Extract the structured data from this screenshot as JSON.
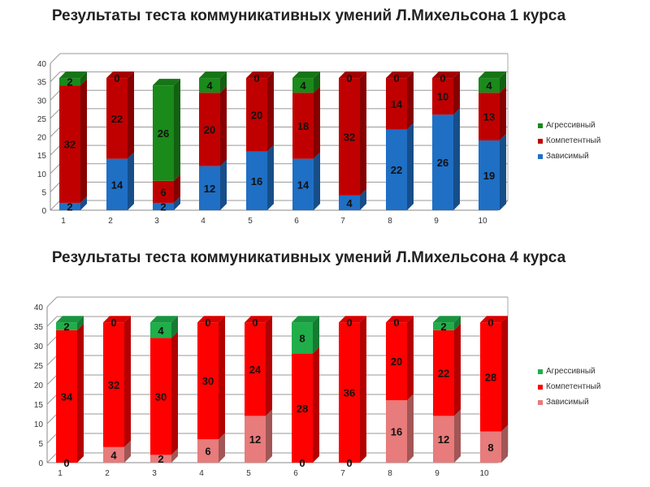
{
  "chart_data": [
    {
      "type": "bar",
      "stacked": true,
      "title": "Результаты теста коммуникативных умений Л.Михельсона 1 курса",
      "categories": [
        "1",
        "2",
        "3",
        "4",
        "5",
        "6",
        "7",
        "8",
        "9",
        "10"
      ],
      "ylim": [
        0,
        40
      ],
      "yticks": [
        "0",
        "5",
        "10",
        "15",
        "20",
        "25",
        "30",
        "35",
        "40"
      ],
      "legend_position": "right",
      "series": [
        {
          "name": "Зависимый",
          "color": "#1f6fc5",
          "values": [
            2,
            14,
            2,
            12,
            16,
            14,
            4,
            22,
            26,
            19
          ]
        },
        {
          "name": "Компетентный",
          "color": "#c00000",
          "values": [
            32,
            22,
            6,
            20,
            20,
            18,
            32,
            14,
            10,
            13
          ]
        },
        {
          "name": "Агрессивный",
          "color": "#1a8a1a",
          "values": [
            2,
            0,
            26,
            4,
            0,
            4,
            0,
            0,
            0,
            4
          ]
        }
      ]
    },
    {
      "type": "bar",
      "stacked": true,
      "title": "Результаты теста коммуникативных умений Л.Михельсона 4 курса",
      "categories": [
        "1",
        "2",
        "3",
        "4",
        "5",
        "6",
        "7",
        "8",
        "9",
        "10"
      ],
      "ylim": [
        0,
        40
      ],
      "yticks": [
        "0",
        "5",
        "10",
        "15",
        "20",
        "25",
        "30",
        "35",
        "40"
      ],
      "legend_position": "right",
      "series": [
        {
          "name": "Зависимый",
          "color": "#e87b7b",
          "values": [
            0,
            4,
            2,
            6,
            12,
            0,
            0,
            16,
            12,
            8
          ]
        },
        {
          "name": "Компетентный",
          "color": "#ff0000",
          "values": [
            34,
            32,
            30,
            30,
            24,
            28,
            36,
            20,
            22,
            28
          ]
        },
        {
          "name": "Агрессивный",
          "color": "#1fae4a",
          "values": [
            2,
            0,
            4,
            0,
            0,
            8,
            0,
            0,
            2,
            0
          ]
        }
      ]
    }
  ]
}
